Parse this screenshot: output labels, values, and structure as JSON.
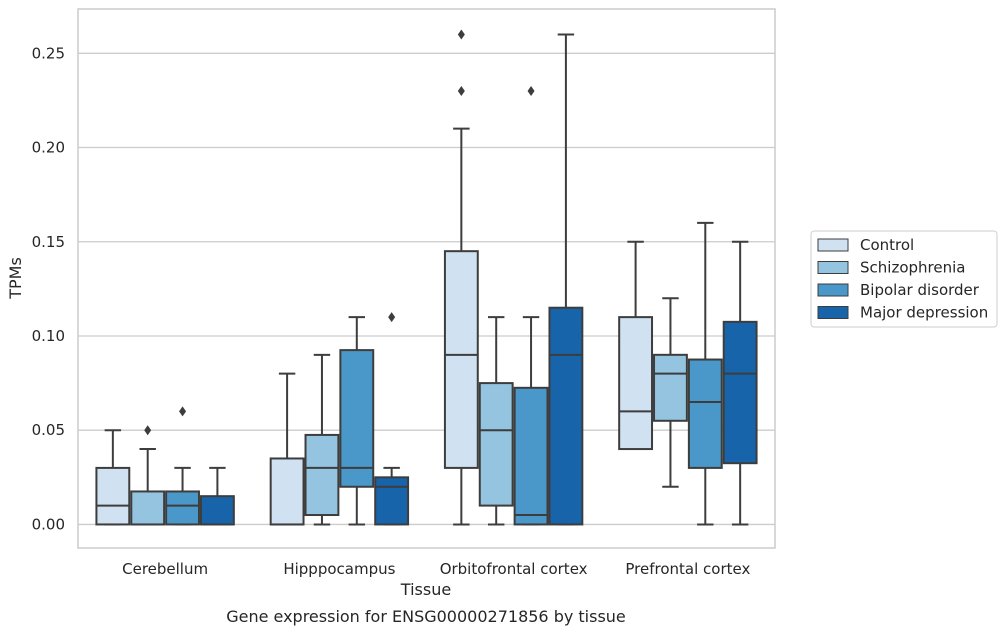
{
  "chart_data": {
    "type": "box",
    "xlabel": "Tissue",
    "ylabel": "TPMs",
    "caption": "Gene expression for ENSG00000271856 by tissue",
    "ylim": [
      -0.0125,
      0.2735
    ],
    "yticks": [
      "0.00",
      "0.05",
      "0.10",
      "0.15",
      "0.20",
      "0.25"
    ],
    "ytick_values": [
      0.0,
      0.05,
      0.1,
      0.15,
      0.2,
      0.25
    ],
    "grid": "horizontal",
    "legend_position": "right",
    "categories": [
      "Cerebellum",
      "Hipppocampus",
      "Orbitofrontal cortex",
      "Prefrontal cortex"
    ],
    "series": [
      {
        "name": "Control",
        "color": "#d0e1f2",
        "boxes": [
          {
            "whislo": 0.0,
            "q1": 0.0,
            "med": 0.01,
            "q3": 0.03,
            "whishi": 0.05,
            "fliers": []
          },
          {
            "whislo": 0.0,
            "q1": 0.0,
            "med": 0.0,
            "q3": 0.035,
            "whishi": 0.08,
            "fliers": []
          },
          {
            "whislo": 0.0,
            "q1": 0.03,
            "med": 0.09,
            "q3": 0.145,
            "whishi": 0.21,
            "fliers": [
              0.23,
              0.26
            ]
          },
          {
            "whislo": 0.04,
            "q1": 0.04,
            "med": 0.06,
            "q3": 0.11,
            "whishi": 0.15,
            "fliers": []
          }
        ]
      },
      {
        "name": "Schizophrenia",
        "color": "#94c4df",
        "boxes": [
          {
            "whislo": 0.0,
            "q1": 0.0,
            "med": 0.0,
            "q3": 0.0175,
            "whishi": 0.04,
            "fliers": [
              0.05
            ]
          },
          {
            "whislo": 0.0,
            "q1": 0.005,
            "med": 0.03,
            "q3": 0.0475,
            "whishi": 0.09,
            "fliers": []
          },
          {
            "whislo": 0.0,
            "q1": 0.01,
            "med": 0.05,
            "q3": 0.075,
            "whishi": 0.11,
            "fliers": []
          },
          {
            "whislo": 0.02,
            "q1": 0.055,
            "med": 0.08,
            "q3": 0.09,
            "whishi": 0.12,
            "fliers": []
          }
        ]
      },
      {
        "name": "Bipolar disorder",
        "color": "#4a98c9",
        "boxes": [
          {
            "whislo": 0.0,
            "q1": 0.0,
            "med": 0.01,
            "q3": 0.0175,
            "whishi": 0.03,
            "fliers": [
              0.06
            ]
          },
          {
            "whislo": 0.0,
            "q1": 0.02,
            "med": 0.03,
            "q3": 0.0925,
            "whishi": 0.11,
            "fliers": []
          },
          {
            "whislo": 0.0,
            "q1": 0.0,
            "med": 0.005,
            "q3": 0.0725,
            "whishi": 0.11,
            "fliers": [
              0.23
            ]
          },
          {
            "whislo": 0.0,
            "q1": 0.03,
            "med": 0.065,
            "q3": 0.0875,
            "whishi": 0.16,
            "fliers": []
          }
        ]
      },
      {
        "name": "Major depression",
        "color": "#1764ab",
        "boxes": [
          {
            "whislo": 0.0,
            "q1": 0.0,
            "med": 0.0,
            "q3": 0.015,
            "whishi": 0.03,
            "fliers": []
          },
          {
            "whislo": 0.0,
            "q1": 0.0,
            "med": 0.02,
            "q3": 0.025,
            "whishi": 0.03,
            "fliers": [
              0.11
            ]
          },
          {
            "whislo": 0.0,
            "q1": 0.0,
            "med": 0.09,
            "q3": 0.115,
            "whishi": 0.26,
            "fliers": []
          },
          {
            "whislo": 0.0,
            "q1": 0.0325,
            "med": 0.08,
            "q3": 0.1075,
            "whishi": 0.15,
            "fliers": []
          }
        ]
      }
    ]
  }
}
